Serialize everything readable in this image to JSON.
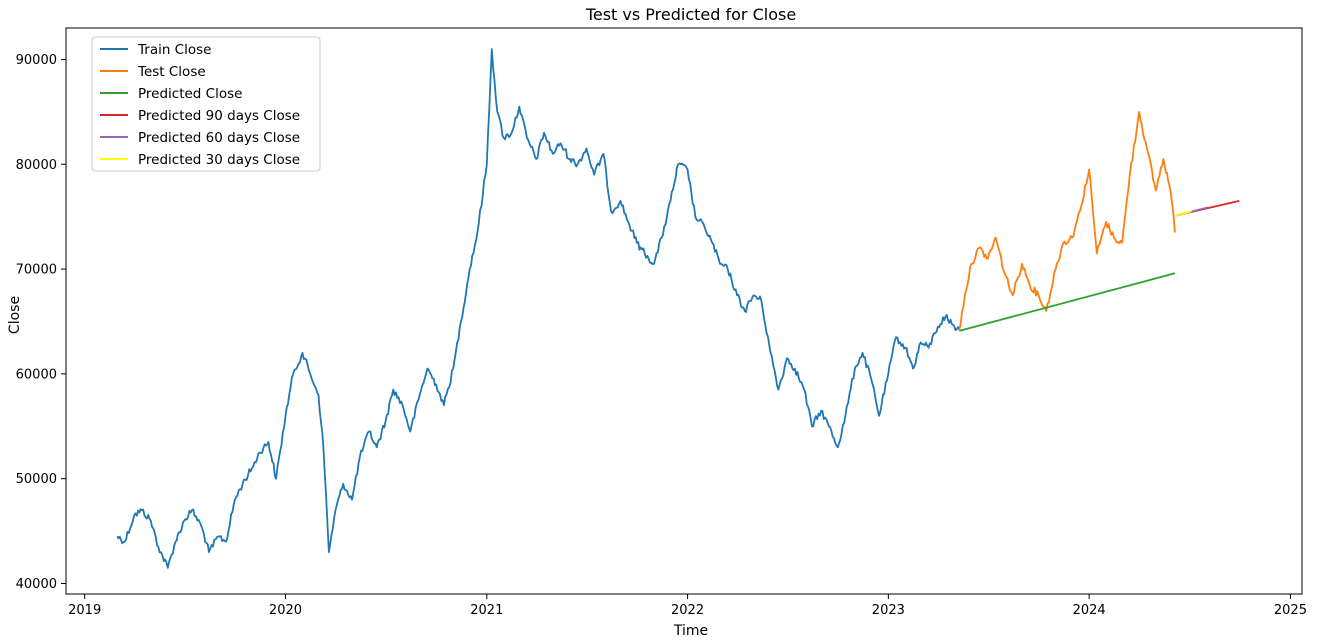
{
  "chart_data": {
    "type": "line",
    "title": "Test vs Predicted for Close",
    "xlabel": "Time",
    "ylabel": "Close",
    "x_type": "date",
    "xlim": [
      "2018-11-28",
      "2025-01-22"
    ],
    "ylim": [
      39000,
      93000
    ],
    "x_ticks": [
      "2019",
      "2020",
      "2021",
      "2022",
      "2023",
      "2024",
      "2025"
    ],
    "x_tick_dates": [
      "2019-01-01",
      "2020-01-01",
      "2021-01-01",
      "2022-01-01",
      "2023-01-01",
      "2024-01-01",
      "2025-01-01"
    ],
    "y_ticks": [
      40000,
      50000,
      60000,
      70000,
      80000,
      90000
    ],
    "grid": false,
    "legend_position": "top-left",
    "series": [
      {
        "name": "Train Close",
        "color": "#1f77b4",
        "points": [
          [
            "2019-03-01",
            44500
          ],
          [
            "2019-03-15",
            44000
          ],
          [
            "2019-04-01",
            46500
          ],
          [
            "2019-04-15",
            47000
          ],
          [
            "2019-05-01",
            46000
          ],
          [
            "2019-05-15",
            43500
          ],
          [
            "2019-06-01",
            41500
          ],
          [
            "2019-06-15",
            44000
          ],
          [
            "2019-07-01",
            46000
          ],
          [
            "2019-07-15",
            47000
          ],
          [
            "2019-08-01",
            45500
          ],
          [
            "2019-08-15",
            43000
          ],
          [
            "2019-09-01",
            44500
          ],
          [
            "2019-09-15",
            44000
          ],
          [
            "2019-10-01",
            48000
          ],
          [
            "2019-10-15",
            49500
          ],
          [
            "2019-11-01",
            51000
          ],
          [
            "2019-11-15",
            52500
          ],
          [
            "2019-12-01",
            53500
          ],
          [
            "2019-12-15",
            50000
          ],
          [
            "2020-01-01",
            56000
          ],
          [
            "2020-01-15",
            60000
          ],
          [
            "2020-02-01",
            62000
          ],
          [
            "2020-02-15",
            60000
          ],
          [
            "2020-03-01",
            58000
          ],
          [
            "2020-03-10",
            53000
          ],
          [
            "2020-03-20",
            43000
          ],
          [
            "2020-04-01",
            47000
          ],
          [
            "2020-04-15",
            49500
          ],
          [
            "2020-05-01",
            48000
          ],
          [
            "2020-05-15",
            52000
          ],
          [
            "2020-06-01",
            54500
          ],
          [
            "2020-06-15",
            53000
          ],
          [
            "2020-07-01",
            55500
          ],
          [
            "2020-07-15",
            58500
          ],
          [
            "2020-08-01",
            57000
          ],
          [
            "2020-08-15",
            54500
          ],
          [
            "2020-09-01",
            58000
          ],
          [
            "2020-09-15",
            60500
          ],
          [
            "2020-10-01",
            59000
          ],
          [
            "2020-10-15",
            57000
          ],
          [
            "2020-11-01",
            60500
          ],
          [
            "2020-11-15",
            65000
          ],
          [
            "2020-12-01",
            70000
          ],
          [
            "2020-12-15",
            73500
          ],
          [
            "2021-01-01",
            80000
          ],
          [
            "2021-01-10",
            91000
          ],
          [
            "2021-01-20",
            85000
          ],
          [
            "2021-02-01",
            82500
          ],
          [
            "2021-02-15",
            83000
          ],
          [
            "2021-03-01",
            85500
          ],
          [
            "2021-03-15",
            82500
          ],
          [
            "2021-04-01",
            80500
          ],
          [
            "2021-04-15",
            83000
          ],
          [
            "2021-05-01",
            81000
          ],
          [
            "2021-05-15",
            82000
          ],
          [
            "2021-06-01",
            80500
          ],
          [
            "2021-06-15",
            80000
          ],
          [
            "2021-07-01",
            81500
          ],
          [
            "2021-07-15",
            79000
          ],
          [
            "2021-08-01",
            81000
          ],
          [
            "2021-08-15",
            75500
          ],
          [
            "2021-09-01",
            76500
          ],
          [
            "2021-09-15",
            74500
          ],
          [
            "2021-10-01",
            72500
          ],
          [
            "2021-10-15",
            71500
          ],
          [
            "2021-11-01",
            70500
          ],
          [
            "2021-11-15",
            73000
          ],
          [
            "2021-12-01",
            76500
          ],
          [
            "2021-12-15",
            80000
          ],
          [
            "2022-01-01",
            79500
          ],
          [
            "2022-01-15",
            75000
          ],
          [
            "2022-02-01",
            74000
          ],
          [
            "2022-02-15",
            72500
          ],
          [
            "2022-03-01",
            70500
          ],
          [
            "2022-03-15",
            70000
          ],
          [
            "2022-04-01",
            67500
          ],
          [
            "2022-04-15",
            66000
          ],
          [
            "2022-05-01",
            67500
          ],
          [
            "2022-05-15",
            67000
          ],
          [
            "2022-06-01",
            62000
          ],
          [
            "2022-06-15",
            58500
          ],
          [
            "2022-07-01",
            61500
          ],
          [
            "2022-07-15",
            60500
          ],
          [
            "2022-08-01",
            58500
          ],
          [
            "2022-08-15",
            55000
          ],
          [
            "2022-09-01",
            56500
          ],
          [
            "2022-09-15",
            55000
          ],
          [
            "2022-10-01",
            53000
          ],
          [
            "2022-10-15",
            56000
          ],
          [
            "2022-11-01",
            60500
          ],
          [
            "2022-11-15",
            62000
          ],
          [
            "2022-12-01",
            59500
          ],
          [
            "2022-12-15",
            56000
          ],
          [
            "2023-01-01",
            60000
          ],
          [
            "2023-01-15",
            63500
          ],
          [
            "2023-02-01",
            62500
          ],
          [
            "2023-02-15",
            60500
          ],
          [
            "2023-03-01",
            63000
          ],
          [
            "2023-03-15",
            62500
          ],
          [
            "2023-04-01",
            64500
          ],
          [
            "2023-04-15",
            65500
          ],
          [
            "2023-05-01",
            64500
          ],
          [
            "2023-05-10",
            64200
          ]
        ]
      },
      {
        "name": "Test Close",
        "color": "#ff7f0e",
        "points": [
          [
            "2023-05-10",
            64200
          ],
          [
            "2023-05-20",
            67500
          ],
          [
            "2023-06-01",
            70500
          ],
          [
            "2023-06-15",
            72000
          ],
          [
            "2023-07-01",
            71000
          ],
          [
            "2023-07-15",
            73000
          ],
          [
            "2023-08-01",
            69500
          ],
          [
            "2023-08-15",
            67500
          ],
          [
            "2023-09-01",
            70500
          ],
          [
            "2023-09-15",
            68500
          ],
          [
            "2023-10-01",
            67500
          ],
          [
            "2023-10-15",
            66000
          ],
          [
            "2023-11-01",
            70000
          ],
          [
            "2023-11-15",
            72500
          ],
          [
            "2023-12-01",
            73000
          ],
          [
            "2023-12-15",
            75500
          ],
          [
            "2024-01-01",
            79500
          ],
          [
            "2024-01-15",
            71500
          ],
          [
            "2024-02-01",
            74500
          ],
          [
            "2024-02-15",
            73000
          ],
          [
            "2024-03-01",
            72500
          ],
          [
            "2024-03-15",
            79000
          ],
          [
            "2024-04-01",
            85000
          ],
          [
            "2024-04-15",
            81500
          ],
          [
            "2024-05-01",
            77500
          ],
          [
            "2024-05-15",
            80500
          ],
          [
            "2024-05-28",
            77500
          ],
          [
            "2024-06-05",
            73500
          ]
        ]
      },
      {
        "name": "Predicted Close",
        "color": "#2ca02c",
        "points": [
          [
            "2023-05-10",
            64100
          ],
          [
            "2024-06-05",
            69600
          ]
        ]
      },
      {
        "name": "Predicted 90 days Close",
        "color": "#d62728",
        "points": [
          [
            "2024-06-06",
            75100
          ],
          [
            "2024-09-30",
            76500
          ]
        ]
      },
      {
        "name": "Predicted 60 days Close",
        "color": "#9467bd",
        "points": [
          [
            "2024-06-06",
            75100
          ],
          [
            "2024-08-05",
            75900
          ]
        ]
      },
      {
        "name": "Predicted 30 days Close",
        "color": "#ffff00",
        "points": [
          [
            "2024-06-06",
            75100
          ],
          [
            "2024-07-05",
            75500
          ]
        ]
      }
    ]
  }
}
